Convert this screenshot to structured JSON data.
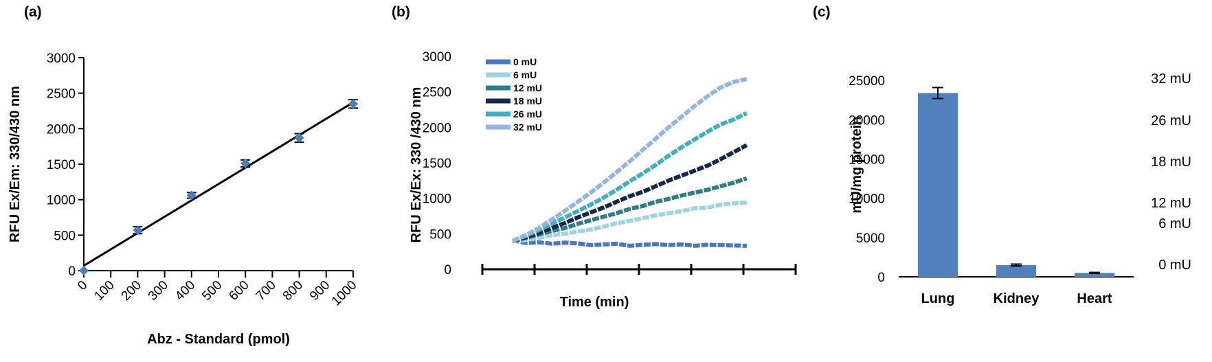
{
  "panels": {
    "a_label": "(a)",
    "b_label": "(b)",
    "c_label": "(c)"
  },
  "chart_data": [
    {
      "type": "scatter",
      "panel": "(a)",
      "title": "",
      "xlabel": "Abz - Standard (pmol)",
      "ylabel": "RFU Ex/Em: 330/430 nm",
      "x_ticks": [
        "0",
        "100",
        "200",
        "300",
        "400",
        "500",
        "600",
        "700",
        "800",
        "900",
        "1000"
      ],
      "y_ticks": [
        "0",
        "500",
        "1000",
        "1500",
        "2000",
        "2500",
        "3000"
      ],
      "xlim": [
        0,
        1000
      ],
      "ylim": [
        0,
        3000
      ],
      "points": [
        {
          "x": 0,
          "y": 0,
          "err": 0
        },
        {
          "x": 200,
          "y": 570,
          "err": 50
        },
        {
          "x": 400,
          "y": 1060,
          "err": 40
        },
        {
          "x": 600,
          "y": 1510,
          "err": 50
        },
        {
          "x": 800,
          "y": 1870,
          "err": 60
        },
        {
          "x": 1000,
          "y": 2350,
          "err": 60
        }
      ],
      "fit_line": {
        "x": [
          0,
          1000
        ],
        "y": [
          70,
          2370
        ]
      },
      "marker_color": "#4a7ebb",
      "line_color": "#000000"
    },
    {
      "type": "line",
      "panel": "(b)",
      "title": "",
      "xlabel": "Time (min)",
      "ylabel": "RFU Ex/Ex: 330 /430 nm",
      "y_ticks": [
        "0",
        "500",
        "1000",
        "1500",
        "2000",
        "2500",
        "3000"
      ],
      "ylim": [
        0,
        3000
      ],
      "xlim": [
        0,
        60
      ],
      "x_tick_count": 7,
      "legend_position": "top-left",
      "series": [
        {
          "name": "0 mU",
          "color": "#4a78c0",
          "x": [
            7,
            10,
            13,
            16,
            19,
            22,
            25,
            28,
            31,
            34,
            37,
            40,
            43,
            46,
            49,
            52,
            55,
            58,
            61
          ],
          "y": [
            410,
            370,
            380,
            360,
            375,
            365,
            340,
            350,
            360,
            330,
            345,
            355,
            340,
            350,
            330,
            345,
            340,
            335,
            330
          ]
        },
        {
          "name": "6 mU",
          "color": "#9fd3e3",
          "x": [
            7,
            10,
            13,
            16,
            19,
            22,
            25,
            28,
            31,
            34,
            37,
            40,
            43,
            46,
            49,
            52,
            55,
            58,
            61
          ],
          "y": [
            400,
            410,
            440,
            480,
            500,
            530,
            560,
            600,
            650,
            680,
            720,
            760,
            790,
            820,
            860,
            870,
            910,
            930,
            940
          ]
        },
        {
          "name": "12 mU",
          "color": "#2f7d86",
          "x": [
            7,
            10,
            13,
            16,
            19,
            22,
            25,
            28,
            31,
            34,
            37,
            40,
            43,
            46,
            49,
            52,
            55,
            58,
            61
          ],
          "y": [
            400,
            440,
            490,
            540,
            580,
            640,
            690,
            740,
            790,
            850,
            890,
            950,
            990,
            1040,
            1080,
            1120,
            1170,
            1220,
            1280
          ]
        },
        {
          "name": "18 mU",
          "color": "#16284a",
          "x": [
            7,
            10,
            13,
            16,
            19,
            22,
            25,
            28,
            31,
            34,
            37,
            40,
            43,
            46,
            49,
            52,
            55,
            58,
            61
          ],
          "y": [
            400,
            450,
            510,
            580,
            650,
            730,
            800,
            870,
            950,
            1030,
            1090,
            1170,
            1250,
            1320,
            1390,
            1460,
            1550,
            1650,
            1750
          ]
        },
        {
          "name": "26 mU",
          "color": "#43aebf",
          "x": [
            7,
            10,
            13,
            16,
            19,
            22,
            25,
            28,
            31,
            34,
            37,
            40,
            43,
            46,
            49,
            52,
            55,
            58,
            61
          ],
          "y": [
            400,
            470,
            550,
            640,
            730,
            820,
            910,
            1010,
            1120,
            1240,
            1350,
            1470,
            1600,
            1720,
            1830,
            1940,
            2040,
            2110,
            2200
          ]
        },
        {
          "name": "32  mU",
          "color": "#96b4e0",
          "x": [
            7,
            10,
            13,
            16,
            19,
            22,
            25,
            28,
            31,
            34,
            37,
            40,
            43,
            46,
            49,
            52,
            55,
            58,
            61
          ],
          "y": [
            400,
            480,
            580,
            700,
            820,
            950,
            1080,
            1220,
            1370,
            1520,
            1680,
            1840,
            2000,
            2150,
            2300,
            2440,
            2560,
            2640,
            2680
          ]
        }
      ]
    },
    {
      "type": "bar",
      "panel": "(c)",
      "title": "",
      "xlabel": "",
      "ylabel": "mU/mg protein",
      "categories": [
        "Lung",
        "Kidney",
        "Heart"
      ],
      "values": [
        23400,
        1500,
        500
      ],
      "errors": [
        700,
        120,
        60
      ],
      "y_ticks": [
        "0",
        "5000",
        "10000",
        "15000",
        "20000",
        "25000"
      ],
      "ylim": [
        0,
        26500
      ],
      "bar_color": "#4f81bd",
      "right_labels": [
        "32 mU",
        "26 mU",
        "18 mU",
        "12 mU",
        "6 mU",
        "0 mU"
      ]
    }
  ]
}
